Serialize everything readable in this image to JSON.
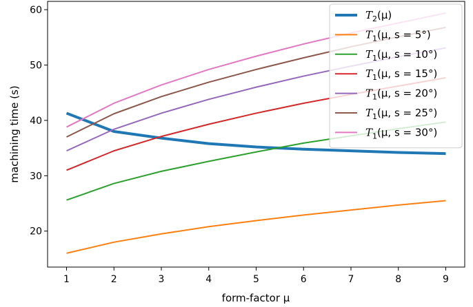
{
  "chart_data": {
    "type": "line",
    "title": "",
    "xlabel": "form-factor μ",
    "ylabel": "machining time (s)",
    "xlim": [
      0.6,
      9.4
    ],
    "ylim": [
      13.5,
      61.5
    ],
    "x_ticks": [
      1,
      2,
      3,
      4,
      5,
      6,
      7,
      8,
      9
    ],
    "y_ticks": [
      20,
      30,
      40,
      50,
      60
    ],
    "grid": false,
    "legend_position": "top-right",
    "x": [
      1,
      2,
      3,
      4,
      5,
      6,
      7,
      8,
      9
    ],
    "series": [
      {
        "name": "T2(μ)",
        "label_base": "T",
        "label_sub": "2",
        "label_rest": "(μ)",
        "color": "#1f77b4",
        "emphasis": true,
        "values": [
          41.3,
          38.0,
          36.8,
          35.8,
          35.2,
          34.8,
          34.5,
          34.2,
          34.0
        ]
      },
      {
        "name": "T1(μ, s = 5°)",
        "label_base": "T",
        "label_sub": "1",
        "label_rest": "(μ, s = 5°)",
        "color": "#ff7f0e",
        "emphasis": false,
        "values": [
          16.0,
          18.0,
          19.5,
          20.8,
          21.9,
          22.9,
          23.8,
          24.7,
          25.5
        ]
      },
      {
        "name": "T1(μ, s = 10°)",
        "label_base": "T",
        "label_sub": "1",
        "label_rest": "(μ, s = 10°)",
        "color": "#2ca02c",
        "emphasis": false,
        "values": [
          25.6,
          28.6,
          30.8,
          32.6,
          34.3,
          35.9,
          37.2,
          38.5,
          39.7
        ]
      },
      {
        "name": "T1(μ, s = 15°)",
        "label_base": "T",
        "label_sub": "1",
        "label_rest": "(μ, s = 15°)",
        "color": "#d62728",
        "emphasis": false,
        "values": [
          31.0,
          34.5,
          37.1,
          39.3,
          41.3,
          43.1,
          44.7,
          46.2,
          47.7
        ]
      },
      {
        "name": "T1(μ, s = 20°)",
        "label_base": "T",
        "label_sub": "1",
        "label_rest": "(μ, s = 20°)",
        "color": "#9467bd",
        "emphasis": false,
        "values": [
          34.5,
          38.4,
          41.3,
          43.8,
          46.0,
          48.0,
          49.8,
          51.5,
          53.1
        ]
      },
      {
        "name": "T1(μ, s = 25°)",
        "label_base": "T",
        "label_sub": "1",
        "label_rest": "(μ, s = 25°)",
        "color": "#8c564b",
        "emphasis": false,
        "values": [
          37.0,
          41.2,
          44.3,
          46.9,
          49.2,
          51.3,
          53.3,
          55.1,
          56.8
        ]
      },
      {
        "name": "T1(μ, s = 30°)",
        "label_base": "T",
        "label_sub": "1",
        "label_rest": "(μ, s = 30°)",
        "color": "#e377c2",
        "emphasis": false,
        "values": [
          38.8,
          43.1,
          46.4,
          49.2,
          51.6,
          53.8,
          55.8,
          57.6,
          59.4
        ]
      }
    ]
  }
}
